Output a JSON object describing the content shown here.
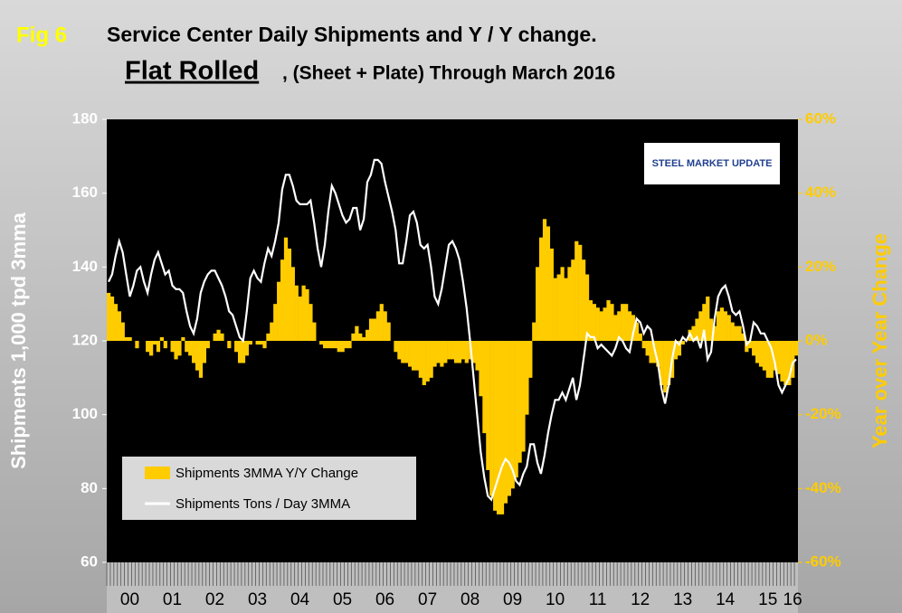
{
  "chart_data": {
    "type": "combo",
    "fig_label": "Fig 6",
    "title": "Service Center Daily Shipments and Y / Y change.",
    "subtitle_emphasis": "Flat Rolled",
    "subtitle": ", (Sheet + Plate) Through March 2016",
    "logo": "STEEL MARKET UPDATE",
    "ylabel": "Shipments 1,000 tpd 3mma",
    "y2label": "Year over Year Change",
    "ylim": [
      60,
      180
    ],
    "yticks": [
      60,
      80,
      100,
      120,
      140,
      160,
      180
    ],
    "y2lim": [
      -60,
      60
    ],
    "y2ticks": [
      {
        "value": -60,
        "label": "-60%"
      },
      {
        "value": -40,
        "label": "-40%"
      },
      {
        "value": -20,
        "label": "-20%"
      },
      {
        "value": 0,
        "label": "0%"
      },
      {
        "value": 20,
        "label": "20%"
      },
      {
        "value": 40,
        "label": "40%"
      },
      {
        "value": 60,
        "label": "60%"
      }
    ],
    "categories": [
      null,
      null,
      null,
      null,
      null,
      null,
      "00",
      null,
      null,
      null,
      null,
      null,
      null,
      null,
      null,
      null,
      null,
      null,
      "01",
      null,
      null,
      null,
      null,
      null,
      null,
      null,
      null,
      null,
      null,
      null,
      "02",
      null,
      null,
      null,
      null,
      null,
      null,
      null,
      null,
      null,
      null,
      null,
      "03",
      null,
      null,
      null,
      null,
      null,
      null,
      null,
      null,
      null,
      null,
      null,
      "04",
      null,
      null,
      null,
      null,
      null,
      null,
      null,
      null,
      null,
      null,
      null,
      "05",
      null,
      null,
      null,
      null,
      null,
      null,
      null,
      null,
      null,
      null,
      null,
      "06",
      null,
      null,
      null,
      null,
      null,
      null,
      null,
      null,
      null,
      null,
      null,
      "07",
      null,
      null,
      null,
      null,
      null,
      null,
      null,
      null,
      null,
      null,
      null,
      "08",
      null,
      null,
      null,
      null,
      null,
      null,
      null,
      null,
      null,
      null,
      null,
      "09",
      null,
      null,
      null,
      null,
      null,
      null,
      null,
      null,
      null,
      null,
      null,
      "10",
      null,
      null,
      null,
      null,
      null,
      null,
      null,
      null,
      null,
      null,
      null,
      "11",
      null,
      null,
      null,
      null,
      null,
      null,
      null,
      null,
      null,
      null,
      null,
      "12",
      null,
      null,
      null,
      null,
      null,
      null,
      null,
      null,
      null,
      null,
      null,
      "13",
      null,
      null,
      null,
      null,
      null,
      null,
      null,
      null,
      null,
      null,
      null,
      "14",
      null,
      null,
      null,
      null,
      null,
      null,
      null,
      null,
      null,
      null,
      null,
      "15",
      null,
      null,
      null,
      null,
      null,
      null,
      "16",
      null
    ],
    "legend": "bottom-left",
    "series": [
      {
        "name": "Shipments 3MMA Y/Y Change",
        "type": "bar",
        "axis": "y2",
        "color": "#ffcc00",
        "values": [
          13,
          12,
          10,
          8,
          5,
          1,
          1,
          0,
          -2,
          0,
          0,
          -3,
          -4,
          -1,
          -3,
          1,
          -2,
          0,
          -3,
          -5,
          -4,
          1,
          -3,
          -4,
          -6,
          -8,
          -10,
          -6,
          -2,
          0,
          2,
          3,
          2,
          0,
          -2,
          0,
          -3,
          -6,
          -6,
          -4,
          -1,
          0,
          -1,
          -1,
          -2,
          2,
          5,
          10,
          16,
          22,
          28,
          25,
          20,
          15,
          12,
          15,
          14,
          10,
          5,
          0,
          -1,
          -2,
          -2,
          -2,
          -2,
          -3,
          -3,
          -2,
          -2,
          2,
          4,
          2,
          1,
          3,
          6,
          6,
          8,
          10,
          8,
          5,
          0,
          -3,
          -5,
          -6,
          -6,
          -7,
          -8,
          -8,
          -10,
          -12,
          -11,
          -10,
          -7,
          -6,
          -7,
          -6,
          -5,
          -5,
          -6,
          -6,
          -5,
          -6,
          -5,
          -6,
          -8,
          -15,
          -25,
          -35,
          -42,
          -46,
          -47,
          -47,
          -44,
          -42,
          -40,
          -37,
          -33,
          -30,
          -20,
          -10,
          5,
          20,
          28,
          33,
          31,
          25,
          17,
          18,
          20,
          17,
          20,
          22,
          27,
          26,
          22,
          18,
          11,
          10,
          9,
          8,
          9,
          11,
          10,
          7,
          8,
          10,
          10,
          8,
          7,
          5,
          2,
          -2,
          -4,
          -6,
          -6,
          -7,
          -12,
          -14,
          -12,
          -10,
          -5,
          -4,
          -1,
          0,
          3,
          4,
          6,
          8,
          10,
          12,
          6,
          4,
          8,
          9,
          8,
          7,
          5,
          4,
          4,
          2,
          -3,
          -2,
          -4,
          -6,
          -7,
          -8,
          -10,
          -10,
          -8,
          -9,
          -11,
          -12,
          -12,
          -10,
          -4
        ]
      },
      {
        "name": "Shipments Tons / Day 3MMA",
        "type": "line",
        "axis": "y",
        "color": "#ffffff",
        "values": [
          136,
          138,
          143,
          147,
          144,
          138,
          132,
          135,
          139,
          140,
          136,
          133,
          138,
          142,
          144,
          141,
          138,
          139,
          135,
          134,
          134,
          133,
          128,
          124,
          122,
          126,
          133,
          136,
          138,
          139,
          139,
          137,
          135,
          132,
          128,
          127,
          124,
          121,
          120,
          128,
          137,
          139,
          137,
          136,
          141,
          145,
          143,
          147,
          152,
          161,
          165,
          165,
          162,
          158,
          157,
          157,
          157,
          158,
          152,
          145,
          140,
          146,
          155,
          162,
          160,
          157,
          154,
          152,
          153,
          156,
          156,
          150,
          153,
          163,
          165,
          169,
          169,
          168,
          163,
          159,
          155,
          150,
          141,
          141,
          147,
          154,
          155,
          152,
          146,
          145,
          146,
          140,
          132,
          130,
          134,
          140,
          146,
          147,
          145,
          142,
          136,
          129,
          120,
          110,
          100,
          90,
          83,
          78,
          77,
          80,
          83,
          86,
          88,
          87,
          85,
          82,
          81,
          84,
          86,
          92,
          92,
          87,
          84,
          89,
          95,
          100,
          104,
          104,
          106,
          104,
          107,
          110,
          104,
          108,
          115,
          122,
          121,
          121,
          118,
          119,
          118,
          117,
          116,
          118,
          121,
          120,
          118,
          117,
          122,
          126,
          125,
          122,
          124,
          123,
          118,
          114,
          107,
          103,
          108,
          115,
          120,
          119,
          121,
          120,
          122,
          120,
          121,
          118,
          123,
          115,
          117,
          126,
          132,
          134,
          135,
          132,
          128,
          127,
          128,
          124,
          119,
          120,
          125,
          124,
          122,
          122,
          120,
          118,
          114,
          108,
          106,
          108,
          110,
          114,
          115
        ]
      }
    ]
  }
}
